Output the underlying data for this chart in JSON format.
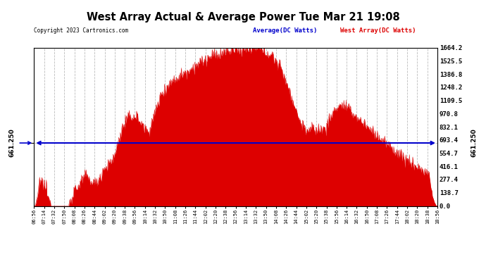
{
  "title": "West Array Actual & Average Power Tue Mar 21 19:08",
  "copyright": "Copyright 2023 Cartronics.com",
  "legend_avg": "Average(DC Watts)",
  "legend_west": "West Array(DC Watts)",
  "avg_value": 661.25,
  "y_max": 1664.2,
  "y_min": 0.0,
  "y_ticks": [
    0.0,
    138.7,
    277.4,
    416.1,
    554.7,
    693.4,
    832.1,
    970.8,
    1109.5,
    1248.2,
    1386.8,
    1525.5,
    1664.2
  ],
  "avg_color": "#0000cc",
  "west_color": "#dd0000",
  "background_color": "#ffffff",
  "grid_color": "#bbbbbb",
  "title_fontsize": 11,
  "x_start_min": 416,
  "x_end_min": 1136,
  "tick_interval_min": 18
}
